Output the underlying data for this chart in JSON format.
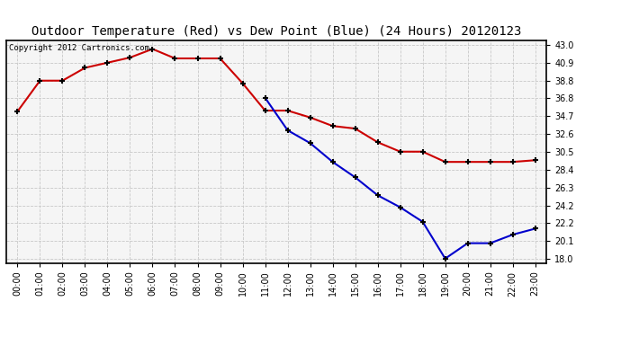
{
  "title": "Outdoor Temperature (Red) vs Dew Point (Blue) (24 Hours) 20120123",
  "copyright_text": "Copyright 2012 Cartronics.com",
  "hours": [
    0,
    1,
    2,
    3,
    4,
    5,
    6,
    7,
    8,
    9,
    10,
    11,
    12,
    13,
    14,
    15,
    16,
    17,
    18,
    19,
    20,
    21,
    22,
    23
  ],
  "temp_red": [
    35.2,
    38.8,
    38.8,
    40.3,
    40.9,
    41.5,
    42.5,
    41.4,
    41.4,
    41.4,
    38.5,
    35.3,
    35.3,
    34.5,
    33.5,
    33.2,
    31.6,
    30.5,
    30.5,
    29.3,
    29.3,
    29.3,
    29.3,
    29.5
  ],
  "dew_blue": [
    null,
    null,
    null,
    null,
    null,
    null,
    null,
    null,
    null,
    null,
    null,
    36.8,
    33.0,
    31.5,
    29.3,
    27.5,
    25.4,
    24.0,
    22.3,
    18.0,
    19.8,
    19.8,
    20.8,
    21.5
  ],
  "ylim": [
    17.5,
    43.5
  ],
  "yticks": [
    18.0,
    20.1,
    22.2,
    24.2,
    26.3,
    28.4,
    30.5,
    32.6,
    34.7,
    36.8,
    38.8,
    40.9,
    43.0
  ],
  "bg_color": "#ffffff",
  "grid_color": "#c8c8c8",
  "red_color": "#cc0000",
  "blue_color": "#0000cc",
  "plot_bg": "#f5f5f5",
  "border_color": "#000000",
  "title_fontsize": 10,
  "tick_fontsize": 7,
  "copyright_fontsize": 6.5
}
